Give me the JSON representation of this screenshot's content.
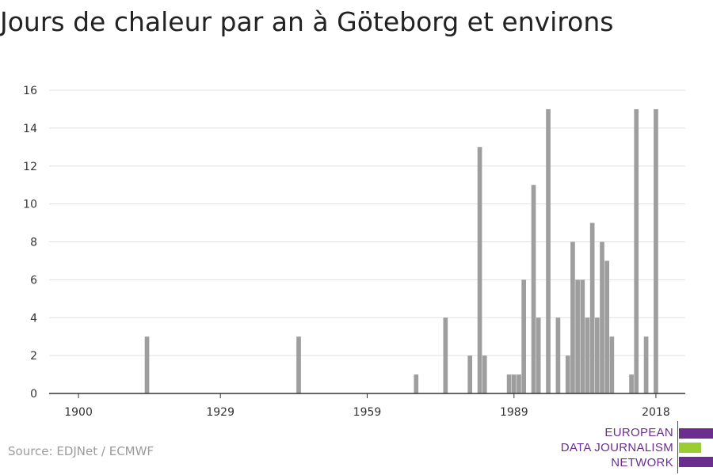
{
  "chart_data": {
    "type": "bar",
    "title": "Jours de chaleur par an à Göteborg et environs",
    "xlabel": "",
    "ylabel": "",
    "xlim": [
      1894,
      2024
    ],
    "ylim": [
      0,
      16
    ],
    "grid": true,
    "legend": "none",
    "x_ticks": [
      1900,
      1929,
      1959,
      1989,
      2018
    ],
    "y_ticks": [
      0,
      2,
      4,
      6,
      8,
      10,
      12,
      14,
      16
    ],
    "bar_color": "#9e9e9e",
    "series": [
      {
        "x": [
          1914,
          1945,
          1969,
          1975,
          1980,
          1982,
          1983,
          1988,
          1989,
          1990,
          1991,
          1993,
          1994,
          1996,
          1998,
          2000,
          2001,
          2002,
          2003,
          2004,
          2005,
          2006,
          2007,
          2008,
          2009,
          2013,
          2014,
          2016,
          2018
        ],
        "values": [
          3,
          3,
          1,
          4,
          2,
          13,
          2,
          1,
          1,
          1,
          6,
          11,
          4,
          15,
          4,
          2,
          8,
          6,
          6,
          4,
          9,
          4,
          8,
          7,
          3,
          1,
          15,
          3,
          15
        ]
      }
    ]
  },
  "source": "Source: EDJNet / ECMWF",
  "logo": {
    "lines": [
      "EUROPEAN",
      "DATA JOURNALISM",
      "NETWORK"
    ],
    "colors": {
      "purple": "#6b2e8e",
      "green": "#9acd32"
    }
  }
}
